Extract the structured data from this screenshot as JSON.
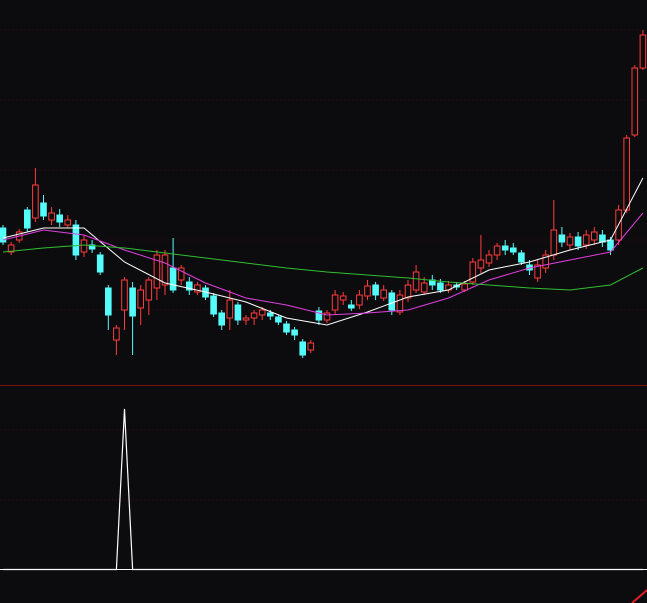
{
  "chart_data": [
    {
      "type": "candlestick",
      "ylim": [
        0,
        385
      ],
      "up_color": "#ff3c3c",
      "down_color": "#54fcfc",
      "open": [
        157,
        133,
        145,
        175,
        167,
        182,
        165,
        170,
        160,
        160,
        133,
        140,
        130,
        97,
        45,
        75,
        97,
        77,
        85,
        97,
        100,
        117,
        105,
        103,
        93,
        97,
        89,
        72,
        67,
        80,
        65,
        67,
        70,
        72,
        68,
        61,
        55,
        43,
        35,
        74,
        65,
        75,
        85,
        80,
        80,
        89,
        100,
        87,
        92,
        73,
        87,
        95,
        93,
        105,
        102,
        95,
        100,
        95,
        103,
        117,
        122,
        130,
        139,
        137,
        132,
        120,
        107,
        117,
        130,
        150,
        140,
        148,
        140,
        145,
        150,
        145,
        145,
        175,
        250,
        317
      ],
      "close": [
        143,
        140,
        153,
        157,
        200,
        169,
        172,
        163,
        165,
        130,
        145,
        136,
        113,
        70,
        57,
        105,
        69,
        95,
        105,
        130,
        130,
        95,
        117,
        95,
        100,
        88,
        71,
        60,
        85,
        65,
        67,
        72,
        75,
        69,
        63,
        53,
        50,
        30,
        42,
        65,
        72,
        90,
        89,
        77,
        90,
        99,
        90,
        95,
        75,
        90,
        100,
        113,
        102,
        100,
        95,
        100,
        98,
        101,
        123,
        125,
        130,
        139,
        135,
        133,
        123,
        115,
        120,
        130,
        155,
        143,
        148,
        139,
        150,
        153,
        143,
        135,
        175,
        247,
        317,
        350
      ],
      "high": [
        160,
        143,
        156,
        178,
        217,
        190,
        178,
        176,
        170,
        165,
        150,
        145,
        133,
        100,
        60,
        108,
        103,
        100,
        108,
        135,
        135,
        147,
        120,
        108,
        103,
        100,
        92,
        75,
        95,
        83,
        70,
        75,
        78,
        75,
        70,
        64,
        58,
        46,
        45,
        78,
        75,
        95,
        93,
        85,
        95,
        105,
        103,
        100,
        95,
        95,
        105,
        120,
        108,
        110,
        106,
        104,
        103,
        104,
        127,
        150,
        135,
        142,
        145,
        142,
        135,
        125,
        125,
        135,
        185,
        158,
        152,
        153,
        155,
        158,
        155,
        148,
        180,
        250,
        320,
        355
      ],
      "low": [
        140,
        130,
        142,
        153,
        163,
        165,
        160,
        158,
        157,
        125,
        128,
        132,
        110,
        55,
        30,
        55,
        30,
        60,
        70,
        85,
        90,
        92,
        100,
        90,
        90,
        85,
        68,
        55,
        55,
        60,
        60,
        60,
        65,
        65,
        60,
        50,
        45,
        27,
        32,
        60,
        62,
        70,
        80,
        74,
        76,
        85,
        85,
        84,
        70,
        70,
        83,
        92,
        90,
        95,
        92,
        92,
        95,
        93,
        100,
        112,
        118,
        125,
        130,
        130,
        120,
        110,
        103,
        112,
        125,
        138,
        135,
        135,
        136,
        140,
        138,
        130,
        140,
        172,
        248,
        315
      ],
      "series": [
        {
          "color": "#ffffff",
          "x": [
            0,
            5,
            10,
            15,
            20,
            25,
            30,
            35,
            40,
            45,
            50,
            55,
            60,
            65,
            70,
            75,
            79
          ],
          "values": [
            147,
            157,
            157,
            123,
            102,
            93,
            83,
            67,
            60,
            73,
            88,
            95,
            115,
            123,
            135,
            145,
            207
          ]
        },
        {
          "color": "#e040e0",
          "x": [
            0,
            5,
            10,
            15,
            20,
            25,
            30,
            35,
            40,
            45,
            50,
            55,
            60,
            65,
            70,
            75,
            79
          ],
          "values": [
            145,
            155,
            150,
            135,
            122,
            102,
            87,
            80,
            70,
            72,
            75,
            87,
            105,
            117,
            125,
            133,
            172
          ]
        },
        {
          "color": "#30c030",
          "x": [
            0,
            5,
            10,
            15,
            20,
            25,
            30,
            35,
            40,
            45,
            50,
            55,
            60,
            65,
            70,
            75,
            79
          ],
          "values": [
            133,
            137,
            140,
            137,
            132,
            127,
            122,
            117,
            113,
            110,
            107,
            103,
            100,
            97,
            95,
            100,
            117
          ]
        }
      ]
    },
    {
      "type": "line",
      "ylim": [
        0,
        185
      ],
      "color": "#ffffff",
      "values": [
        0,
        0,
        0,
        0,
        0,
        0,
        0,
        0,
        0,
        0,
        0,
        0,
        0,
        0,
        0,
        161,
        0,
        0,
        0,
        0,
        0,
        0,
        0,
        0,
        0,
        0,
        0,
        0,
        0,
        0,
        0,
        0,
        0,
        0,
        0,
        0,
        0,
        0,
        0,
        0,
        0,
        0,
        0,
        0,
        0,
        0,
        0,
        0,
        0,
        0,
        0,
        0,
        0,
        0,
        0,
        0,
        0,
        0,
        0,
        0,
        0,
        0,
        0,
        0,
        0,
        0,
        0,
        0,
        0,
        0,
        0,
        0,
        0,
        0,
        0,
        0,
        0,
        0,
        0,
        0
      ]
    }
  ]
}
